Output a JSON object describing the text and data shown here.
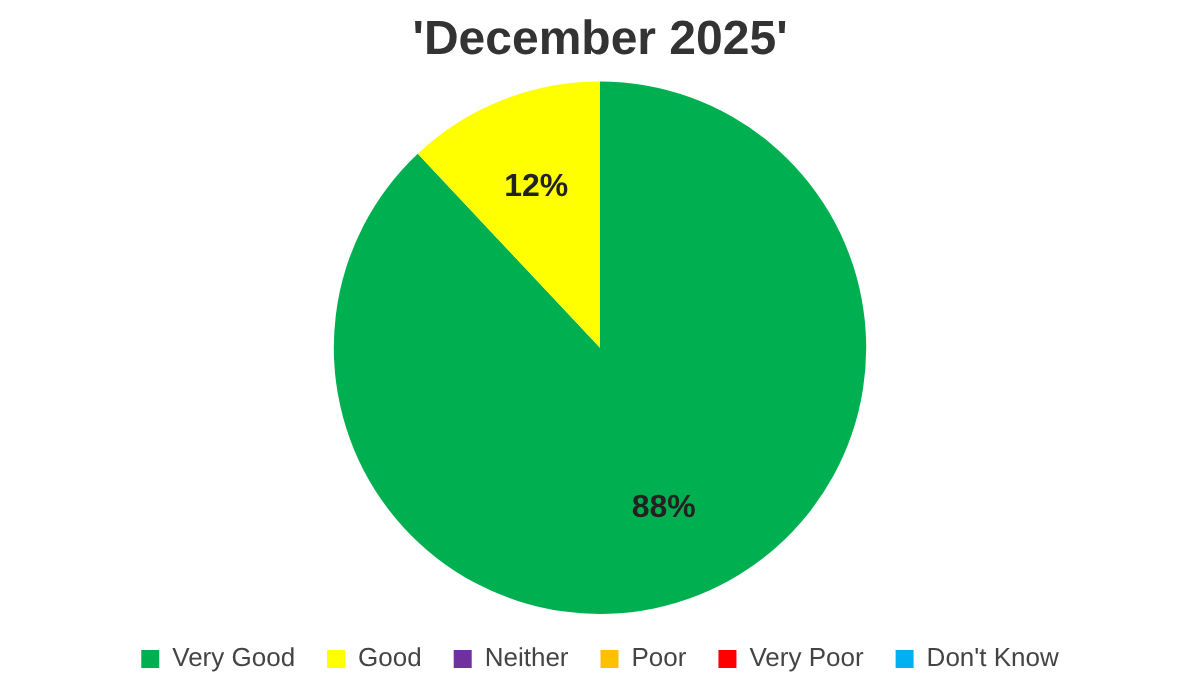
{
  "chart_data": {
    "type": "pie",
    "title": "'December 2025'",
    "categories": [
      "Very Good",
      "Good",
      "Neither",
      "Poor",
      "Very Poor",
      "Don't Know"
    ],
    "values": [
      88,
      12,
      0,
      0,
      0,
      0
    ],
    "colors": [
      "#00b050",
      "#ffff00",
      "#7030a0",
      "#ffc000",
      "#ff0000",
      "#00b0f0"
    ],
    "value_labels": [
      "88%",
      "12%",
      null,
      null,
      null,
      null
    ],
    "legend": "bottom"
  }
}
